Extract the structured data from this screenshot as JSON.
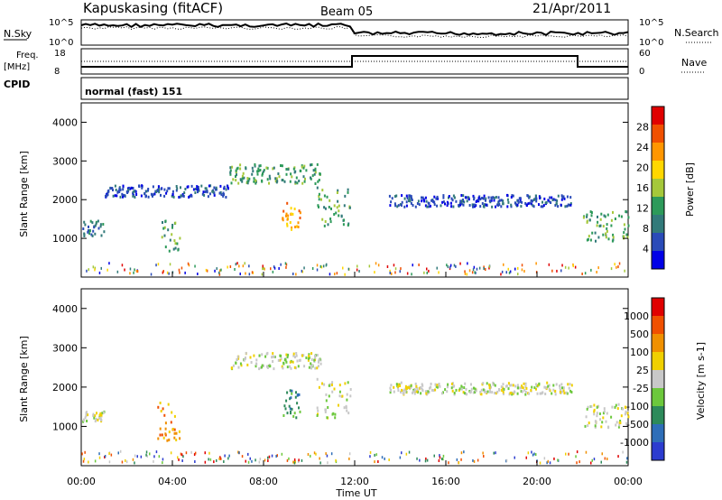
{
  "header": {
    "station": "Kapuskasing (fitACF)",
    "beam": "Beam 05",
    "date": "21/Apr/2011"
  },
  "top_panels": {
    "nsky_label": "N.Sky",
    "nsky_tick_hi": "10^5",
    "nsky_tick_lo": "10^0",
    "nsearch_label": "N.Search",
    "nsearch_tick_hi": "10^5",
    "nsearch_tick_lo": "10^0",
    "freq_label": "Freq.",
    "freq_unit": "[MHz]",
    "freq_tick_hi": "18",
    "freq_tick_lo": "8",
    "nave_label": "Nave",
    "nave_tick_hi": "60",
    "nave_tick_lo": "0",
    "cpid_label": "CPID",
    "cpid_text": "normal (fast) 151"
  },
  "chart_data": [
    {
      "type": "heatmap",
      "name": "power",
      "xlabel": "Time UT",
      "ylabel": "Slant Range [km]",
      "ylim": [
        0,
        4500
      ],
      "y_ticks": [
        "1000",
        "2000",
        "3000",
        "4000"
      ],
      "colorbar_label": "Power [dB]",
      "colorbar_ticks": [
        "28",
        "24",
        "20",
        "16",
        "12",
        "8",
        "4"
      ],
      "colorbar_colors": [
        "#0000e6",
        "#2a4bb8",
        "#327a7a",
        "#2d9a5a",
        "#a5c83a",
        "#ffd700",
        "#ff9600",
        "#f05000",
        "#e00000"
      ],
      "echo_regions": [
        {
          "t_start": 0.0,
          "t_end": 1.0,
          "range_center": 1250,
          "range_width": 200,
          "level": 2
        },
        {
          "t_start": 1.0,
          "t_end": 6.5,
          "range_center": 2200,
          "range_width": 150,
          "level": 1
        },
        {
          "t_start": 3.5,
          "t_end": 4.3,
          "range_center": 1050,
          "range_width": 400,
          "level": 3
        },
        {
          "t_start": 6.5,
          "t_end": 10.5,
          "range_center": 2650,
          "range_width": 250,
          "level": 3
        },
        {
          "t_start": 8.7,
          "t_end": 9.6,
          "range_center": 1550,
          "range_width": 350,
          "level": 6
        },
        {
          "t_start": 10.3,
          "t_end": 11.8,
          "range_center": 1800,
          "range_width": 500,
          "level": 3
        },
        {
          "t_start": 13.5,
          "t_end": 21.5,
          "range_center": 1950,
          "range_width": 150,
          "level": 1
        },
        {
          "t_start": 22.0,
          "t_end": 24.0,
          "range_center": 1300,
          "range_width": 400,
          "level": 3
        }
      ]
    },
    {
      "type": "heatmap",
      "name": "velocity",
      "xlabel": "Time UT",
      "ylabel": "Slant Range [km]",
      "ylim": [
        0,
        4500
      ],
      "y_ticks": [
        "1000",
        "2000",
        "3000",
        "4000"
      ],
      "colorbar_label": "Velocity [m s-1]",
      "colorbar_ticks": [
        "1000",
        "500",
        "100",
        "25",
        "-25",
        "-100",
        "-500",
        "-1000"
      ],
      "colorbar_colors": [
        "#2c3ccf",
        "#2e6eb8",
        "#2d8a5a",
        "#6cc83c",
        "#c8c8c8",
        "#f0d000",
        "#f09000",
        "#f05000",
        "#e00000"
      ],
      "echo_regions": [
        {
          "t_start": 0.0,
          "t_end": 1.0,
          "range_center": 1250,
          "range_width": 150,
          "level": 4
        },
        {
          "t_start": 3.3,
          "t_end": 4.3,
          "range_center": 1100,
          "range_width": 500,
          "level": 6
        },
        {
          "t_start": 6.5,
          "t_end": 10.5,
          "range_center": 2650,
          "range_width": 200,
          "level": 4
        },
        {
          "t_start": 8.7,
          "t_end": 9.6,
          "range_center": 1550,
          "range_width": 350,
          "level": 2
        },
        {
          "t_start": 10.3,
          "t_end": 11.8,
          "range_center": 1700,
          "range_width": 500,
          "level": 4
        },
        {
          "t_start": 13.5,
          "t_end": 21.5,
          "range_center": 1950,
          "range_width": 150,
          "level": 4
        },
        {
          "t_start": 22.0,
          "t_end": 24.0,
          "range_center": 1250,
          "range_width": 300,
          "level": 4
        }
      ]
    }
  ],
  "x_axis": {
    "ticks": [
      "00:00",
      "04:00",
      "08:00",
      "12:00",
      "16:00",
      "20:00",
      "00:00"
    ],
    "label": "Time UT"
  }
}
